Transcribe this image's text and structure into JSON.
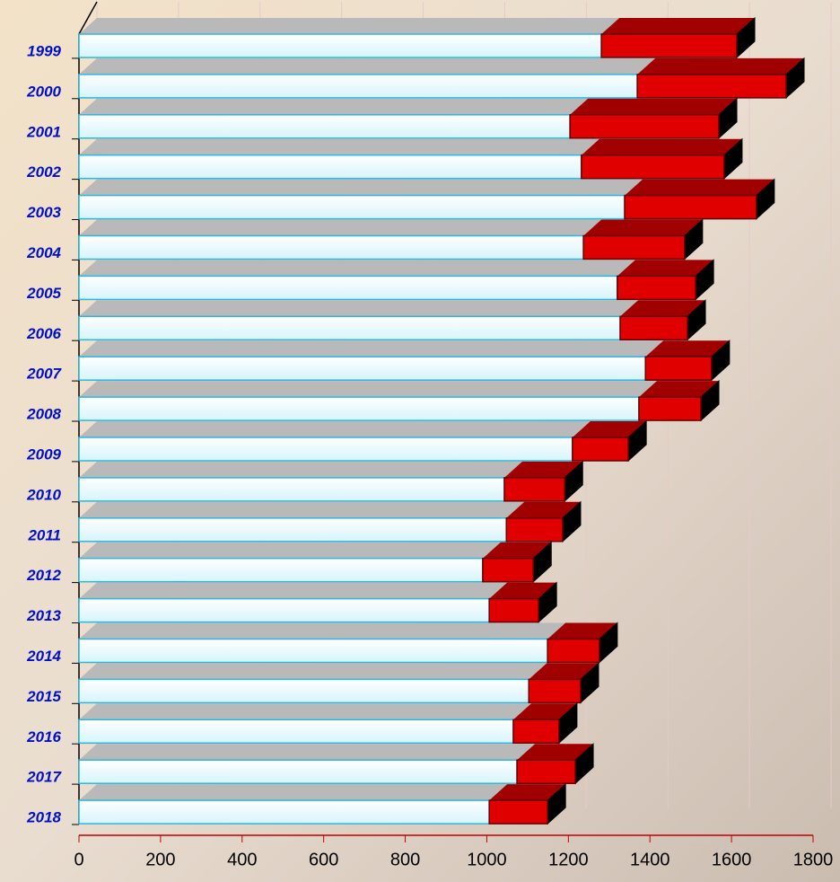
{
  "chart_data": {
    "type": "stacked-bar-3d-horizontal",
    "categories": [
      "1999",
      "2000",
      "2001",
      "2002",
      "2003",
      "2004",
      "2005",
      "2006",
      "2007",
      "2008",
      "2009",
      "2010",
      "2011",
      "2012",
      "2013",
      "2014",
      "2015",
      "2016",
      "2017",
      "2018"
    ],
    "series": [
      {
        "color": "#e6faff",
        "values": [
          1281,
          1369,
          1204,
          1232,
          1338,
          1237,
          1320,
          1327,
          1389,
          1373,
          1210,
          1043,
          1048,
          990,
          1006,
          1149,
          1103,
          1065,
          1074,
          1006
        ]
      },
      {
        "color": "#e00000",
        "values": [
          332,
          365,
          365,
          350,
          323,
          248,
          192,
          165,
          162,
          152,
          137,
          148,
          138,
          124,
          121,
          127,
          127,
          112,
          143,
          143
        ]
      }
    ],
    "xlim": [
      0,
      1800
    ],
    "xticks": [
      0,
      200,
      400,
      600,
      800,
      1000,
      1200,
      1400,
      1600,
      1800
    ],
    "grid": true
  }
}
